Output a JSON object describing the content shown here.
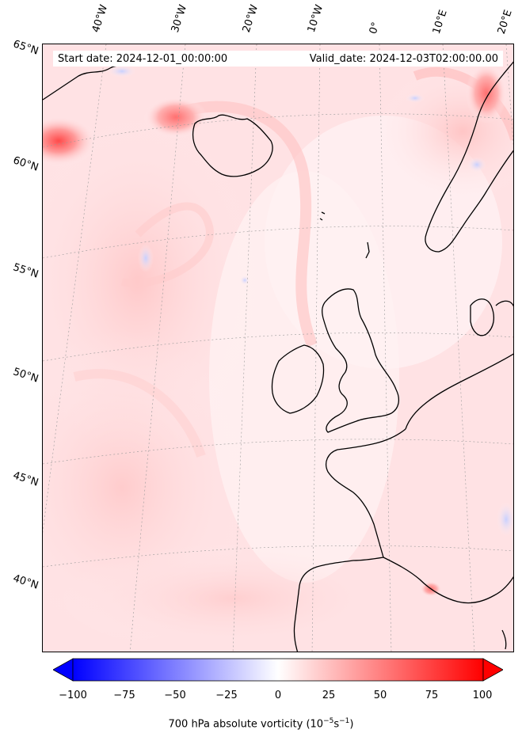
{
  "header": {
    "start_date": "Start date: 2024-12-01_00:00:00",
    "valid_date": "Valid_date: 2024-12-03T02:00:00.00"
  },
  "longitude_labels": [
    "40°W",
    "30°W",
    "20°W",
    "10°W",
    "0°",
    "10°E",
    "20°E"
  ],
  "latitude_labels": [
    "65°N",
    "60°N",
    "55°N",
    "50°N",
    "45°N",
    "40°N"
  ],
  "colorbar": {
    "min": -100,
    "max": 100,
    "extend": "both",
    "colormap": "bwr",
    "ticks": [
      "−100",
      "−75",
      "−50",
      "−25",
      "0",
      "25",
      "50",
      "75",
      "100"
    ],
    "label": "700 hPa absolute vorticity (10",
    "label_exp1": "−5",
    "label_mid": "s",
    "label_exp2": "−1",
    "label_end": ")"
  },
  "colors": {
    "background_field": "#ffeef0",
    "coastline": "#000000"
  }
}
